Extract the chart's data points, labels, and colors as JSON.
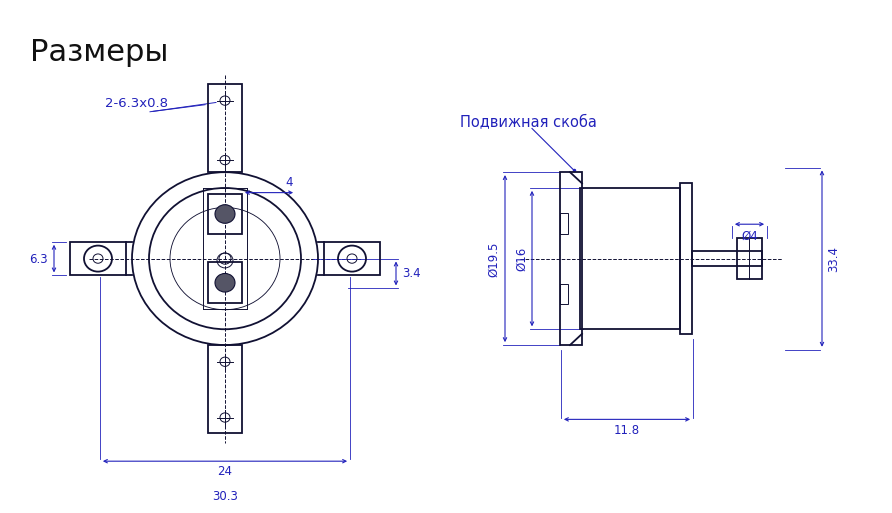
{
  "title": "Размеры",
  "annotation": "Подвижная скоба",
  "label_2_6x0_8": "2-6.3x0.8",
  "dim_4": "4",
  "dim_6_3": "6.3",
  "dim_3_4": "3.4",
  "dim_19_5": "Ø19.5",
  "dim_16": "Ø16",
  "dim_4b": "Ø4",
  "dim_33_4": "33.4",
  "dim_24": "24",
  "dim_30_3": "30.3",
  "dim_11_8": "11.8",
  "bg_color": "#ffffff",
  "line_color": "#2222bb",
  "part_color": "#111133",
  "title_color": "#111111",
  "title_fontsize": 22,
  "annotation_fontsize": 9.5,
  "dim_fontsize": 8.5
}
